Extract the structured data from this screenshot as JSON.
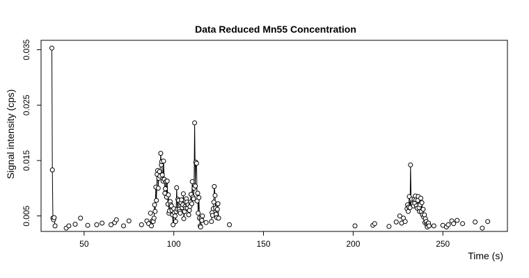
{
  "chart_data": {
    "type": "line",
    "title": "Data Reduced Mn55 Concentration",
    "xlabel": "Time (s)",
    "ylabel": "Signal intensity (cps)",
    "xlim": [
      26,
      286
    ],
    "ylim": [
      0.0022,
      0.0367
    ],
    "x_ticks": [
      50,
      100,
      150,
      200,
      250
    ],
    "y_ticks": [
      0.005,
      0.015,
      0.025,
      0.035
    ],
    "x_tick_labels": [
      "50",
      "100",
      "150",
      "200",
      "250"
    ],
    "y_tick_labels": [
      "0.005",
      "0.015",
      "0.025",
      "0.035"
    ],
    "grid": false,
    "legend": "none",
    "colors": {
      "line": "#000000",
      "marker_stroke": "#000000",
      "marker_fill": "#ffffff",
      "frame": "#000000"
    },
    "series": [
      {
        "segments": [
          [
            [
              32.0,
              0.0353
            ],
            [
              32.3,
              0.0133
            ],
            [
              32.6,
              0.0046
            ],
            [
              33.0,
              0.0043
            ],
            [
              33.3,
              0.0047
            ],
            [
              33.8,
              0.0032
            ]
          ],
          [
            [
              88.0,
              0.0041
            ],
            [
              88.5,
              0.004
            ],
            [
              89.0,
              0.0046
            ],
            [
              89.3,
              0.007
            ],
            [
              89.6,
              0.0058
            ],
            [
              90.0,
              0.0102
            ],
            [
              90.3,
              0.0078
            ],
            [
              90.7,
              0.0125
            ],
            [
              91.0,
              0.0132
            ],
            [
              91.3,
              0.01
            ],
            [
              91.6,
              0.0118
            ],
            [
              92.0,
              0.013
            ],
            [
              92.3,
              0.0122
            ],
            [
              92.7,
              0.0163
            ],
            [
              93.0,
              0.0142
            ],
            [
              93.3,
              0.0148
            ],
            [
              93.6,
              0.0124
            ],
            [
              94.0,
              0.0113
            ],
            [
              94.3,
              0.0149
            ],
            [
              94.7,
              0.0116
            ],
            [
              95.0,
              0.0091
            ],
            [
              95.3,
              0.0099
            ],
            [
              95.6,
              0.0112
            ],
            [
              96.0,
              0.0084
            ],
            [
              96.3,
              0.0113
            ],
            [
              96.7,
              0.0071
            ],
            [
              97.0,
              0.0088
            ],
            [
              97.3,
              0.0055
            ],
            [
              97.6,
              0.0059
            ],
            [
              98.0,
              0.0076
            ],
            [
              98.3,
              0.007
            ],
            [
              98.7,
              0.0068
            ],
            [
              99.0,
              0.006
            ],
            [
              99.3,
              0.0052
            ],
            [
              99.6,
              0.0034
            ],
            [
              100.0,
              0.0063
            ],
            [
              100.3,
              0.0056
            ],
            [
              100.7,
              0.005
            ],
            [
              101.0,
              0.004
            ],
            [
              101.3,
              0.0058
            ],
            [
              101.6,
              0.0101
            ],
            [
              102.0,
              0.0062
            ],
            [
              102.3,
              0.008
            ],
            [
              102.7,
              0.0078
            ],
            [
              103.0,
              0.0062
            ],
            [
              103.3,
              0.0058
            ],
            [
              103.6,
              0.0055
            ],
            [
              104.0,
              0.0074
            ],
            [
              104.3,
              0.0079
            ],
            [
              104.7,
              0.0065
            ],
            [
              105.0,
              0.007
            ],
            [
              105.3,
              0.009
            ],
            [
              105.6,
              0.0045
            ],
            [
              106.0,
              0.0058
            ],
            [
              106.3,
              0.0067
            ],
            [
              106.7,
              0.0064
            ],
            [
              107.0,
              0.0081
            ],
            [
              107.3,
              0.0075
            ],
            [
              107.6,
              0.0064
            ],
            [
              108.0,
              0.007
            ],
            [
              108.3,
              0.0052
            ],
            [
              108.7,
              0.006
            ],
            [
              109.0,
              0.0067
            ],
            [
              109.3,
              0.0075
            ],
            [
              109.6,
              0.0089
            ],
            [
              110.0,
              0.0072
            ],
            [
              110.3,
              0.0112
            ],
            [
              110.7,
              0.0084
            ],
            [
              111.0,
              0.0081
            ],
            [
              111.3,
              0.01
            ],
            [
              111.6,
              0.0218
            ],
            [
              112.0,
              0.0104
            ],
            [
              112.3,
              0.0147
            ],
            [
              112.7,
              0.0145
            ],
            [
              113.0,
              0.0077
            ],
            [
              113.3,
              0.0091
            ],
            [
              113.6,
              0.0055
            ],
            [
              114.0,
              0.0083
            ],
            [
              114.3,
              0.0046
            ],
            [
              114.7,
              0.0032
            ],
            [
              115.0,
              0.003
            ],
            [
              115.3,
              0.0045
            ],
            [
              115.6,
              0.0042
            ],
            [
              116.0,
              0.005
            ]
          ],
          [
            [
              121.0,
              0.004
            ],
            [
              121.3,
              0.0056
            ],
            [
              121.6,
              0.0051
            ],
            [
              122.0,
              0.0063
            ],
            [
              122.3,
              0.0075
            ],
            [
              122.6,
              0.0103
            ],
            [
              123.0,
              0.0087
            ],
            [
              123.3,
              0.0064
            ],
            [
              123.6,
              0.0053
            ],
            [
              124.0,
              0.0047
            ],
            [
              124.3,
              0.0062
            ],
            [
              124.6,
              0.0072
            ],
            [
              125.0,
              0.0046
            ]
          ],
          [
            [
              230.0,
              0.0063
            ],
            [
              230.3,
              0.007
            ],
            [
              230.7,
              0.0058
            ],
            [
              231.0,
              0.0066
            ],
            [
              231.3,
              0.0085
            ],
            [
              231.7,
              0.0065
            ],
            [
              232.0,
              0.0142
            ],
            [
              232.3,
              0.0078
            ],
            [
              232.7,
              0.008
            ],
            [
              233.0,
              0.0074
            ],
            [
              233.3,
              0.0072
            ],
            [
              233.7,
              0.0068
            ],
            [
              234.0,
              0.008
            ],
            [
              234.3,
              0.0073
            ],
            [
              234.7,
              0.0086
            ],
            [
              235.0,
              0.0079
            ],
            [
              235.3,
              0.0068
            ],
            [
              235.7,
              0.0064
            ],
            [
              236.0,
              0.0078
            ],
            [
              236.3,
              0.0085
            ],
            [
              236.7,
              0.0065
            ],
            [
              237.0,
              0.0058
            ],
            [
              237.3,
              0.007
            ],
            [
              237.7,
              0.0082
            ],
            [
              238.0,
              0.0058
            ],
            [
              238.3,
              0.0074
            ],
            [
              238.7,
              0.0052
            ],
            [
              239.0,
              0.0062
            ],
            [
              239.3,
              0.0048
            ],
            [
              239.7,
              0.0052
            ],
            [
              240.0,
              0.0038
            ],
            [
              240.3,
              0.0045
            ],
            [
              240.7,
              0.004
            ],
            [
              241.0,
              0.0035
            ],
            [
              241.3,
              0.003
            ],
            [
              241.7,
              0.0035
            ],
            [
              242.0,
              0.0037
            ],
            [
              242.3,
              0.0032
            ]
          ]
        ],
        "isolated_points": [
          [
            40.0,
            0.0028
          ],
          [
            41.5,
            0.0032
          ],
          [
            45.0,
            0.0035
          ],
          [
            48.0,
            0.0046
          ],
          [
            52.0,
            0.0033
          ],
          [
            57.0,
            0.0034
          ],
          [
            60.0,
            0.0037
          ],
          [
            65.0,
            0.0034
          ],
          [
            67.0,
            0.0038
          ],
          [
            68.0,
            0.0043
          ],
          [
            72.0,
            0.0032
          ],
          [
            75.0,
            0.0041
          ],
          [
            82.0,
            0.0034
          ],
          [
            85.0,
            0.0041
          ],
          [
            86.0,
            0.0036
          ],
          [
            87.0,
            0.0055
          ],
          [
            87.5,
            0.0032
          ],
          [
            118.0,
            0.0038
          ],
          [
            131.0,
            0.0034
          ],
          [
            201.0,
            0.0032
          ],
          [
            211.0,
            0.0033
          ],
          [
            212.0,
            0.0036
          ],
          [
            220.0,
            0.0031
          ],
          [
            224.0,
            0.0039
          ],
          [
            226.0,
            0.005
          ],
          [
            227.0,
            0.0037
          ],
          [
            228.0,
            0.0046
          ],
          [
            229.0,
            0.004
          ],
          [
            245.0,
            0.0032
          ],
          [
            250.0,
            0.0033
          ],
          [
            252.0,
            0.003
          ],
          [
            253.0,
            0.0034
          ],
          [
            255.0,
            0.0041
          ],
          [
            256.0,
            0.0036
          ],
          [
            258.0,
            0.0042
          ],
          [
            261.0,
            0.0036
          ],
          [
            268.0,
            0.0039
          ],
          [
            272.0,
            0.0028
          ],
          [
            275.0,
            0.004
          ]
        ]
      }
    ]
  }
}
